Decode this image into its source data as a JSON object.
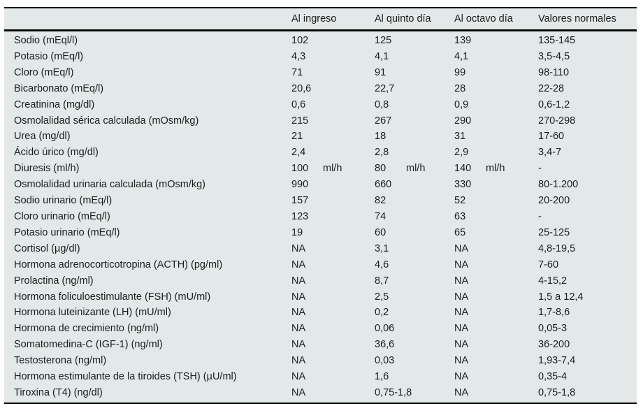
{
  "table": {
    "columns": [
      "",
      "Al ingreso",
      "Al quinto día",
      "Al octavo día",
      "Valores normales"
    ],
    "rows": [
      {
        "label": "Sodio (mEql/l)",
        "values": [
          "102",
          "125",
          "139",
          "135-145"
        ]
      },
      {
        "label": "Potasio (mEq/l)",
        "values": [
          "4,3",
          "4,1",
          "4,1",
          "3,5-4,5"
        ]
      },
      {
        "label": "Cloro (mEq/l)",
        "values": [
          "71",
          "91",
          "99",
          "98-110"
        ]
      },
      {
        "label": "Bicarbonato (mEq/l)",
        "values": [
          "20,6",
          "22,7",
          "28",
          "22-28"
        ]
      },
      {
        "label": "Creatinina (mg/dl)",
        "values": [
          "0,6",
          "0,8",
          "0,9",
          "0,6-1,2"
        ]
      },
      {
        "label": "Osmolalidad sérica calculada (mOsm/kg)",
        "values": [
          "215",
          "267",
          "290",
          "270-298"
        ]
      },
      {
        "label": "Urea (mg/dl)",
        "values": [
          "21",
          "18",
          "31",
          "17-60"
        ]
      },
      {
        "label": "Ácido úrico (mg/dl)",
        "values": [
          "2,4",
          "2,8",
          "2,9",
          "3,4-7"
        ]
      },
      {
        "label": "Diuresis (ml/h)",
        "values": [
          {
            "value": "100",
            "unit": "ml/h"
          },
          {
            "value": "80",
            "unit": "ml/h"
          },
          {
            "value": "140",
            "unit": "ml/h"
          },
          "-"
        ]
      },
      {
        "label": "Osmolalidad urinaria calculada (mOsm/kg)",
        "values": [
          "990",
          "660",
          "330",
          "80-1.200"
        ]
      },
      {
        "label": "Sodio urinario (mEq/l)",
        "values": [
          "157",
          "82",
          "52",
          "20-200"
        ]
      },
      {
        "label": "Cloro urinario (mEq/l)",
        "values": [
          "123",
          "74",
          "63",
          "-"
        ]
      },
      {
        "label": "Potasio urinario (mEq/l)",
        "values": [
          "19",
          "60",
          "65",
          "25-125"
        ]
      },
      {
        "label": "Cortisol (µg/dl)",
        "values": [
          "NA",
          "3,1",
          "NA",
          "4,8-19,5"
        ]
      },
      {
        "label": "Hormona adrenocorticotropina (ACTH) (pg/ml)",
        "values": [
          "NA",
          "4,6",
          "NA",
          "7-60"
        ]
      },
      {
        "label": "Prolactina (ng/ml)",
        "values": [
          "NA",
          "8,7",
          "NA",
          "4-15,2"
        ]
      },
      {
        "label": "Hormona foliculoestimulante (FSH) (mU/ml)",
        "values": [
          "NA",
          "2,5",
          "NA",
          "1,5 a 12,4"
        ]
      },
      {
        "label": "Hormona luteinizante (LH) (mU/ml)",
        "values": [
          "NA",
          "0,2",
          "NA",
          "1,7-8,6"
        ]
      },
      {
        "label": "Hormona de crecimiento (ng/ml)",
        "values": [
          "NA",
          "0,06",
          "NA",
          "0,05-3"
        ]
      },
      {
        "label": "Somatomedina-C (IGF-1) (ng/ml)",
        "values": [
          "NA",
          "36,6",
          "NA",
          "36-200"
        ]
      },
      {
        "label": "Testosterona (ng/ml)",
        "values": [
          "NA",
          "0,03",
          "NA",
          "1,93-7,4"
        ]
      },
      {
        "label": "Hormona estimulante de la tiroides (TSH) (µU/ml)",
        "values": [
          "NA",
          "1,6",
          "NA",
          "0,35-4"
        ]
      },
      {
        "label": "Tiroxina (T4) (ng/dl)",
        "values": [
          "NA",
          "0,75-1,8",
          "NA",
          "0,75-1,8"
        ]
      }
    ]
  },
  "colors": {
    "table_background": "#e3e8e8",
    "border": "#0a0a0a",
    "text": "#1c1c1c",
    "page_background": "#ffffff"
  }
}
